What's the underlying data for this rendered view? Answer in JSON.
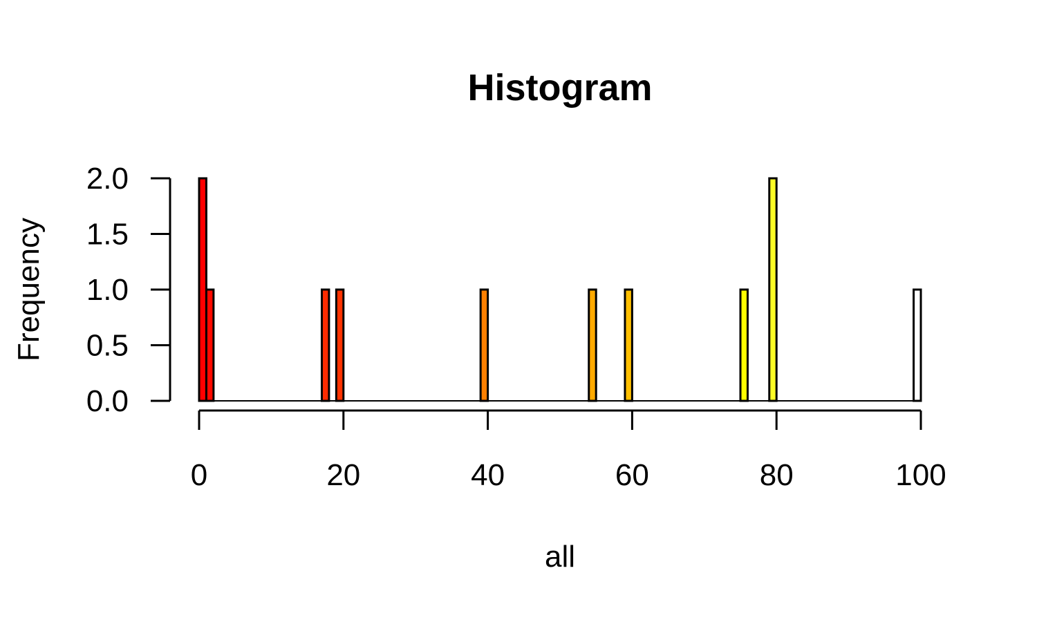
{
  "chart_data": {
    "type": "bar",
    "title": "Histogram",
    "xlabel": "all",
    "ylabel": "Frequency",
    "xlim": [
      0,
      100
    ],
    "ylim": [
      0,
      2
    ],
    "x_ticks": [
      "0",
      "20",
      "40",
      "60",
      "80",
      "100"
    ],
    "y_ticks": [
      "0.0",
      "0.5",
      "1.0",
      "1.5",
      "2.0"
    ],
    "bin_width": 1,
    "bins": [
      {
        "start": 0,
        "end": 1,
        "count": 2,
        "color": "#FF0000"
      },
      {
        "start": 1,
        "end": 2,
        "count": 1,
        "color": "#FF0A00"
      },
      {
        "start": 17,
        "end": 18,
        "count": 1,
        "color": "#FF2B00"
      },
      {
        "start": 19,
        "end": 20,
        "count": 1,
        "color": "#FF3300"
      },
      {
        "start": 39,
        "end": 40,
        "count": 1,
        "color": "#FF8000"
      },
      {
        "start": 54,
        "end": 55,
        "count": 1,
        "color": "#FFAA00"
      },
      {
        "start": 59,
        "end": 60,
        "count": 1,
        "color": "#FFBF00"
      },
      {
        "start": 75,
        "end": 76,
        "count": 1,
        "color": "#FFFF00"
      },
      {
        "start": 79,
        "end": 80,
        "count": 2,
        "color": "#FFFF26"
      },
      {
        "start": 99,
        "end": 100,
        "count": 1,
        "color": "#FFFFFF"
      }
    ],
    "grid": false,
    "legend": "none"
  }
}
